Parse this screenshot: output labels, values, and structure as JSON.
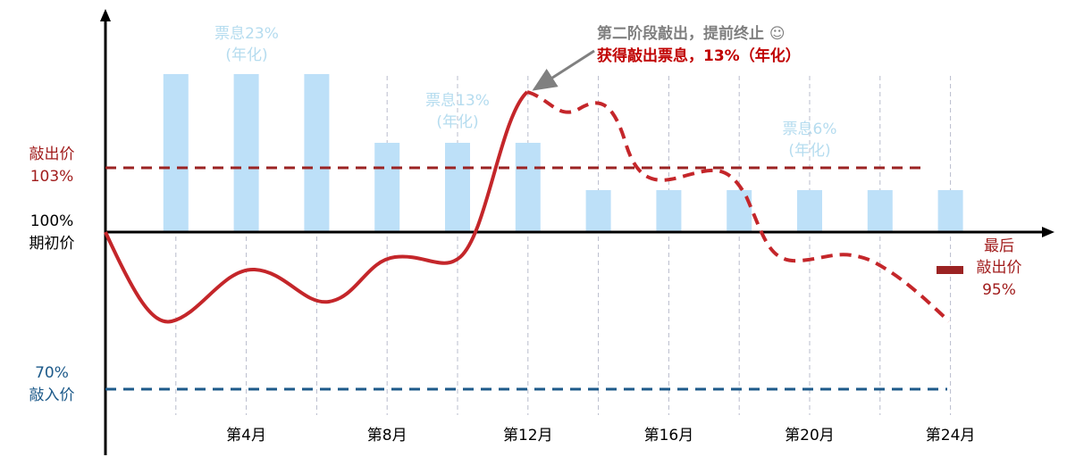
{
  "coupon_labels": [
    {
      "rate": "票息23%",
      "note": "(年化)"
    },
    {
      "rate": "票息13%",
      "note": "(年化)"
    },
    {
      "rate": "票息6%",
      "note": "(年化)"
    }
  ],
  "annotation": {
    "line1": "第二阶段敲出，提前终止 ☺",
    "line2": "获得敲出票息，13%（年化）"
  },
  "levels": {
    "knock_out": {
      "name": "敲出价",
      "value": "103%"
    },
    "initial": {
      "value": "100%",
      "name": "期初价"
    },
    "knock_in": {
      "value": "70%",
      "name": "敲入价"
    },
    "final_knock_out": {
      "line1": "最后",
      "line2": "敲出价",
      "value": "95%"
    }
  },
  "months": [
    "第4月",
    "第8月",
    "第12月",
    "第16月",
    "第20月",
    "第24月"
  ]
}
